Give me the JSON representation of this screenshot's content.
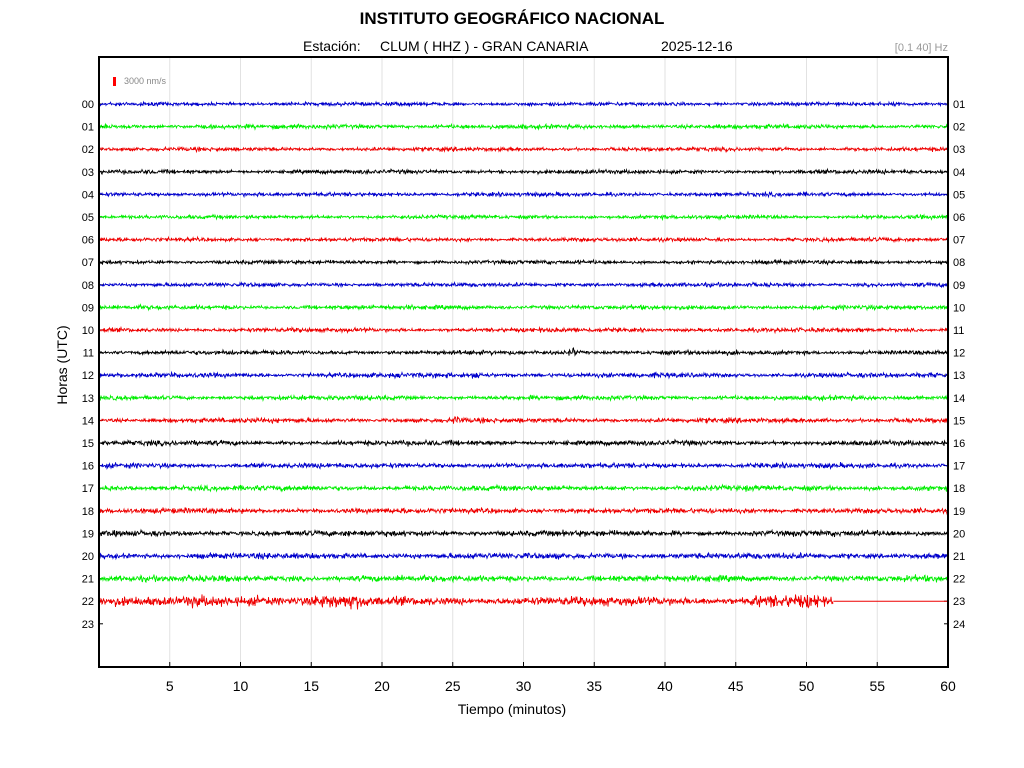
{
  "header": {
    "title": "INSTITUTO GEOGRÁFICO NACIONAL",
    "station_label": "Estación:",
    "station": "CLUM ( HHZ ) - GRAN CANARIA",
    "date": "2025-12-16",
    "band": "[0.1 40] Hz"
  },
  "scale": {
    "label": "3000 nm/s",
    "color": "#ff0000"
  },
  "chart_data": {
    "type": "line",
    "title": "",
    "xlabel": "Tiempo (minutos)",
    "ylabel": "Horas (UTC)",
    "xlim": [
      0,
      60
    ],
    "x_ticks": [
      5,
      10,
      15,
      20,
      25,
      30,
      35,
      40,
      45,
      50,
      55,
      60
    ],
    "grid": true,
    "left_hour_labels": [
      "00",
      "01",
      "02",
      "03",
      "04",
      "05",
      "06",
      "07",
      "08",
      "09",
      "10",
      "11",
      "12",
      "13",
      "14",
      "15",
      "16",
      "17",
      "18",
      "19",
      "20",
      "21",
      "22",
      "23"
    ],
    "right_hour_labels": [
      "01",
      "02",
      "03",
      "04",
      "05",
      "06",
      "07",
      "08",
      "09",
      "10",
      "11",
      "12",
      "13",
      "14",
      "15",
      "16",
      "17",
      "18",
      "19",
      "20",
      "21",
      "22",
      "23",
      "24"
    ],
    "trace_colors": [
      "#0000cc",
      "#00ee00",
      "#ee0000",
      "#000000"
    ],
    "series": [
      {
        "hour": 0,
        "end_minute": 60,
        "amplitude": 2.2
      },
      {
        "hour": 1,
        "end_minute": 60,
        "amplitude": 2.6
      },
      {
        "hour": 2,
        "end_minute": 60,
        "amplitude": 2.3
      },
      {
        "hour": 3,
        "end_minute": 60,
        "amplitude": 2.4
      },
      {
        "hour": 4,
        "end_minute": 60,
        "amplitude": 2.4
      },
      {
        "hour": 5,
        "end_minute": 60,
        "amplitude": 2.3
      },
      {
        "hour": 6,
        "end_minute": 60,
        "amplitude": 2.3
      },
      {
        "hour": 7,
        "end_minute": 60,
        "amplitude": 2.3
      },
      {
        "hour": 8,
        "end_minute": 60,
        "amplitude": 2.4
      },
      {
        "hour": 9,
        "end_minute": 60,
        "amplitude": 2.6
      },
      {
        "hour": 10,
        "end_minute": 60,
        "amplitude": 2.5
      },
      {
        "hour": 11,
        "end_minute": 60,
        "amplitude": 2.6,
        "event_minute": 33.5
      },
      {
        "hour": 12,
        "end_minute": 60,
        "amplitude": 2.8,
        "event_minute": 26.7
      },
      {
        "hour": 13,
        "end_minute": 60,
        "amplitude": 2.7
      },
      {
        "hour": 14,
        "end_minute": 60,
        "amplitude": 2.8,
        "event_minute": 25.3
      },
      {
        "hour": 15,
        "end_minute": 60,
        "amplitude": 3.0
      },
      {
        "hour": 16,
        "end_minute": 60,
        "amplitude": 3.0
      },
      {
        "hour": 17,
        "end_minute": 60,
        "amplitude": 3.2
      },
      {
        "hour": 18,
        "end_minute": 60,
        "amplitude": 3.1
      },
      {
        "hour": 19,
        "end_minute": 60,
        "amplitude": 3.4
      },
      {
        "hour": 20,
        "end_minute": 60,
        "amplitude": 3.5
      },
      {
        "hour": 21,
        "end_minute": 60,
        "amplitude": 3.8
      },
      {
        "hour": 22,
        "end_minute": 51.9,
        "amplitude": 5.2
      }
    ]
  }
}
